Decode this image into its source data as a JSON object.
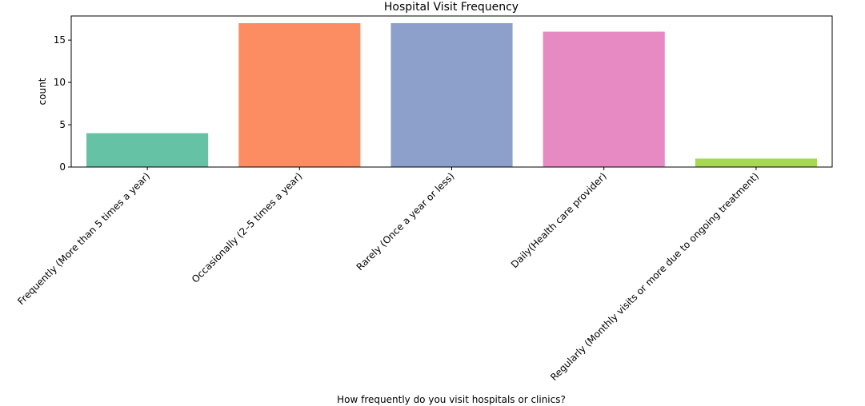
{
  "chart_data": {
    "type": "bar",
    "title": "Hospital Visit Frequency",
    "xlabel": "How frequently do you visit hospitals or clinics?",
    "ylabel": "count",
    "categories": [
      "Frequently (More than 5 times a year)",
      "Occasionally (2–5 times a year)",
      "Rarely (Once a year or less)",
      "Daily(Health care provider)",
      "Regularly (Monthly visits or more due to ongoing treatment)"
    ],
    "values": [
      4,
      17,
      17,
      16,
      1
    ],
    "colors": [
      "#66c2a5",
      "#fc8d62",
      "#8da0cb",
      "#e78ac3",
      "#a6d854"
    ],
    "ylim": [
      0,
      17.85
    ],
    "yticks": [
      0,
      5,
      10,
      15
    ],
    "ytick_labels": [
      "0",
      "5",
      "10",
      "15"
    ],
    "grid": false
  }
}
